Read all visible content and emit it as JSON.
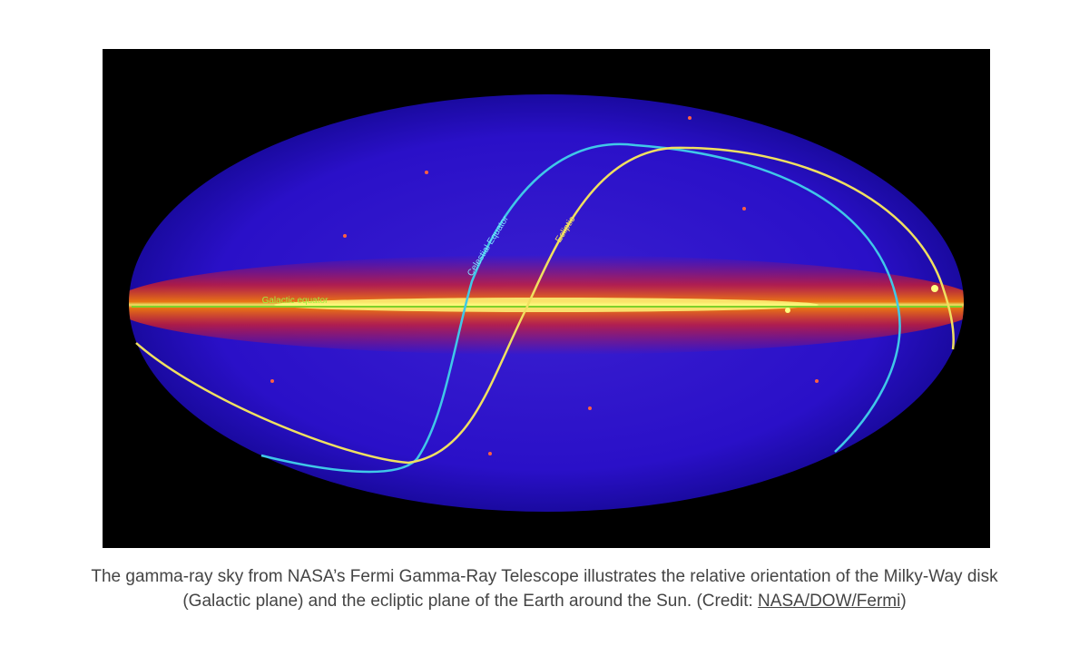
{
  "figure": {
    "labels": {
      "galactic_equator": "Galactic equator",
      "celestial_equator": "Celestial Equator",
      "ecliptic": "Ecliptic"
    },
    "caption": {
      "text": "The gamma-ray sky from NASA’s Fermi Gamma-Ray Telescope illustrates the relative orientation of the Milky-Way disk (Galactic plane) and the ecliptic plane of the Earth around the Sun. (Credit: ",
      "link": "NASA/DOW/Fermi",
      "text_end": ")"
    }
  }
}
